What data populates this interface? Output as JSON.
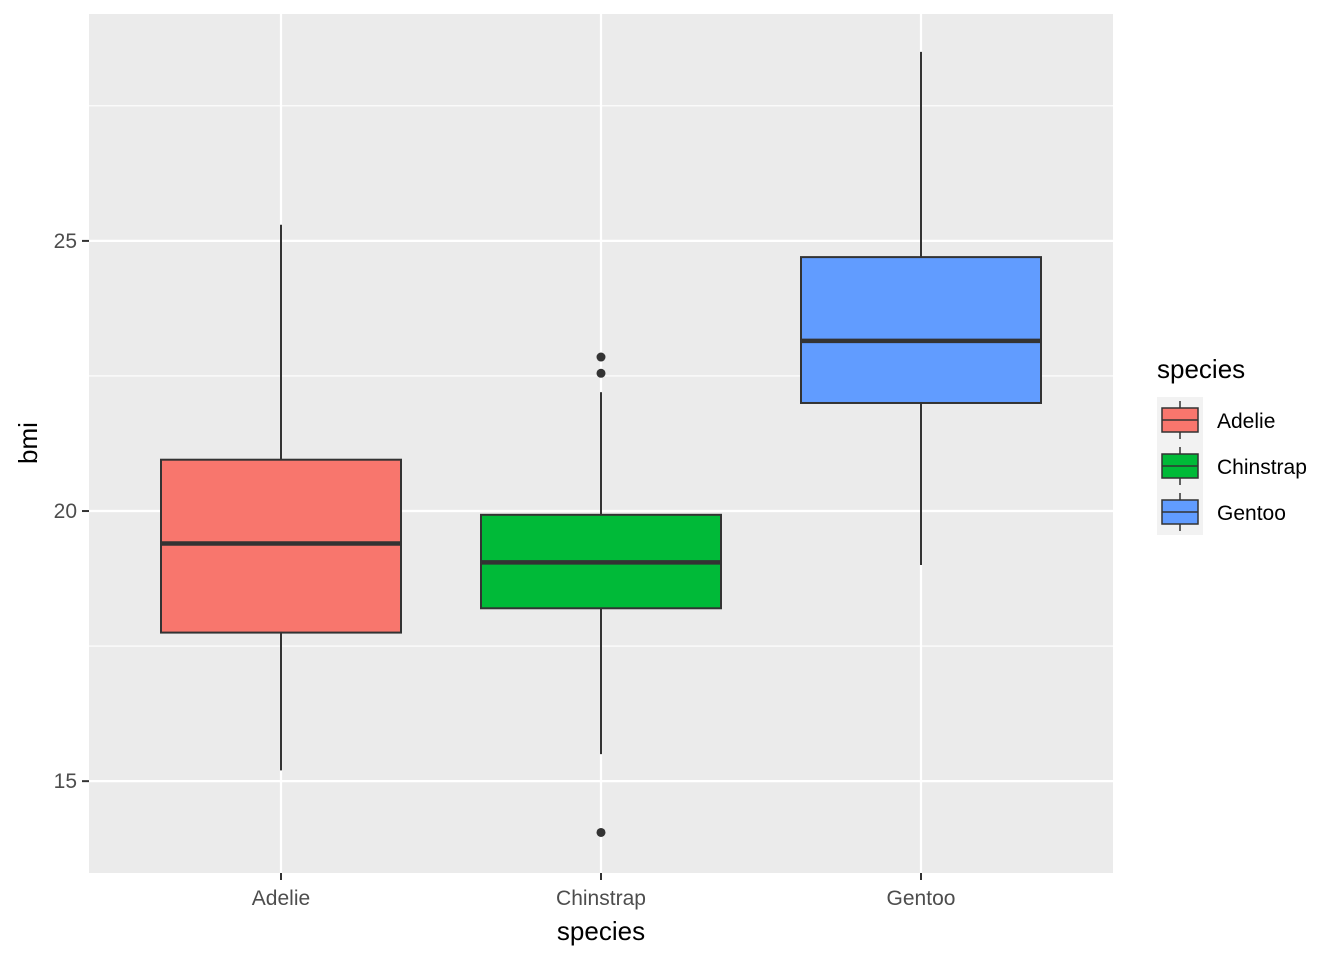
{
  "chart_data": {
    "type": "boxplot",
    "title": "",
    "xlabel": "species",
    "ylabel": "bmi",
    "categories": [
      "Adelie",
      "Chinstrap",
      "Gentoo"
    ],
    "ylim": [
      13.3,
      29.2
    ],
    "yticks": [
      15,
      20,
      25
    ],
    "grid": true,
    "legend": {
      "title": "species",
      "position": "right"
    },
    "series": [
      {
        "name": "Adelie",
        "color": "#F8766D",
        "whisker_low": 15.2,
        "q1": 17.75,
        "median": 19.4,
        "q3": 20.95,
        "whisker_high": 25.3,
        "outliers": []
      },
      {
        "name": "Chinstrap",
        "color": "#00BA38",
        "whisker_low": 15.5,
        "q1": 18.2,
        "median": 19.05,
        "q3": 19.93,
        "whisker_high": 22.2,
        "outliers": [
          22.85,
          22.55,
          14.05
        ]
      },
      {
        "name": "Gentoo",
        "color": "#619CFF",
        "whisker_low": 19.0,
        "q1": 22.0,
        "median": 23.15,
        "q3": 24.7,
        "whisker_high": 28.5,
        "outliers": []
      }
    ]
  }
}
